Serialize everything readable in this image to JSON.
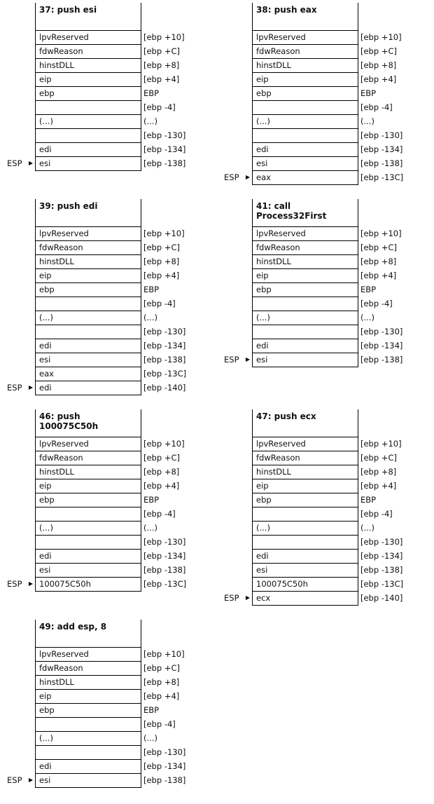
{
  "esp_label": "ESP",
  "frames": [
    {
      "title": "37: push esi",
      "rows": [
        {
          "cell": "lpvReserved",
          "addr": "[ebp +10]"
        },
        {
          "cell": "fdwReason",
          "addr": "[ebp +C]"
        },
        {
          "cell": "hinstDLL",
          "addr": "[ebp +8]"
        },
        {
          "cell": "eip",
          "addr": "[ebp +4]"
        },
        {
          "cell": "ebp",
          "addr": "EBP"
        },
        {
          "cell": "",
          "addr": "[ebp -4]"
        },
        {
          "cell": "(...)",
          "addr": "(...)"
        },
        {
          "cell": "",
          "addr": "[ebp -130]"
        },
        {
          "cell": "edi",
          "addr": "[ebp -134]"
        },
        {
          "cell": "esi",
          "addr": "[ebp -138]"
        }
      ]
    },
    {
      "title": "38: push eax",
      "rows": [
        {
          "cell": "lpvReserved",
          "addr": "[ebp +10]"
        },
        {
          "cell": "fdwReason",
          "addr": "[ebp +C]"
        },
        {
          "cell": "hinstDLL",
          "addr": "[ebp +8]"
        },
        {
          "cell": "eip",
          "addr": "[ebp +4]"
        },
        {
          "cell": "ebp",
          "addr": "EBP"
        },
        {
          "cell": "",
          "addr": "[ebp -4]"
        },
        {
          "cell": "(...)",
          "addr": "(...)"
        },
        {
          "cell": "",
          "addr": "[ebp -130]"
        },
        {
          "cell": "edi",
          "addr": "[ebp -134]"
        },
        {
          "cell": "esi",
          "addr": "[ebp -138]"
        },
        {
          "cell": "eax",
          "addr": "[ebp -13C]"
        }
      ]
    },
    {
      "title": "39: push edi",
      "rows": [
        {
          "cell": "lpvReserved",
          "addr": "[ebp +10]"
        },
        {
          "cell": "fdwReason",
          "addr": "[ebp +C]"
        },
        {
          "cell": "hinstDLL",
          "addr": "[ebp +8]"
        },
        {
          "cell": "eip",
          "addr": "[ebp +4]"
        },
        {
          "cell": "ebp",
          "addr": "EBP"
        },
        {
          "cell": "",
          "addr": "[ebp -4]"
        },
        {
          "cell": "(...)",
          "addr": "(...)"
        },
        {
          "cell": "",
          "addr": "[ebp -130]"
        },
        {
          "cell": "edi",
          "addr": "[ebp -134]"
        },
        {
          "cell": "esi",
          "addr": "[ebp -138]"
        },
        {
          "cell": "eax",
          "addr": "[ebp -13C]"
        },
        {
          "cell": "edi",
          "addr": "[ebp -140]"
        }
      ]
    },
    {
      "title": "41: call Process32First",
      "rows": [
        {
          "cell": "lpvReserved",
          "addr": "[ebp +10]"
        },
        {
          "cell": "fdwReason",
          "addr": "[ebp +C]"
        },
        {
          "cell": "hinstDLL",
          "addr": "[ebp +8]"
        },
        {
          "cell": "eip",
          "addr": "[ebp +4]"
        },
        {
          "cell": "ebp",
          "addr": "EBP"
        },
        {
          "cell": "",
          "addr": "[ebp -4]"
        },
        {
          "cell": "(...)",
          "addr": "(...)"
        },
        {
          "cell": "",
          "addr": "[ebp -130]"
        },
        {
          "cell": "edi",
          "addr": "[ebp -134]"
        },
        {
          "cell": "esi",
          "addr": "[ebp -138]"
        }
      ]
    },
    {
      "title": "46: push 100075C50h",
      "rows": [
        {
          "cell": "lpvReserved",
          "addr": "[ebp +10]"
        },
        {
          "cell": "fdwReason",
          "addr": "[ebp +C]"
        },
        {
          "cell": "hinstDLL",
          "addr": "[ebp +8]"
        },
        {
          "cell": "eip",
          "addr": "[ebp +4]"
        },
        {
          "cell": "ebp",
          "addr": "EBP"
        },
        {
          "cell": "",
          "addr": "[ebp -4]"
        },
        {
          "cell": "(...)",
          "addr": "(...)"
        },
        {
          "cell": "",
          "addr": "[ebp -130]"
        },
        {
          "cell": "edi",
          "addr": "[ebp -134]"
        },
        {
          "cell": "esi",
          "addr": "[ebp -138]"
        },
        {
          "cell": "100075C50h",
          "addr": "[ebp -13C]"
        }
      ]
    },
    {
      "title": "47: push ecx",
      "rows": [
        {
          "cell": "lpvReserved",
          "addr": "[ebp +10]"
        },
        {
          "cell": "fdwReason",
          "addr": "[ebp +C]"
        },
        {
          "cell": "hinstDLL",
          "addr": "[ebp +8]"
        },
        {
          "cell": "eip",
          "addr": "[ebp +4]"
        },
        {
          "cell": "ebp",
          "addr": "EBP"
        },
        {
          "cell": "",
          "addr": "[ebp -4]"
        },
        {
          "cell": "(...)",
          "addr": "(...)"
        },
        {
          "cell": "",
          "addr": "[ebp -130]"
        },
        {
          "cell": "edi",
          "addr": "[ebp -134]"
        },
        {
          "cell": "esi",
          "addr": "[ebp -138]"
        },
        {
          "cell": "100075C50h",
          "addr": "[ebp -13C]"
        },
        {
          "cell": "ecx",
          "addr": "[ebp -140]"
        }
      ]
    },
    {
      "title": "49: add esp, 8",
      "rows": [
        {
          "cell": "lpvReserved",
          "addr": "[ebp +10]"
        },
        {
          "cell": "fdwReason",
          "addr": "[ebp +C]"
        },
        {
          "cell": "hinstDLL",
          "addr": "[ebp +8]"
        },
        {
          "cell": "eip",
          "addr": "[ebp +4]"
        },
        {
          "cell": "ebp",
          "addr": "EBP"
        },
        {
          "cell": "",
          "addr": "[ebp -4]"
        },
        {
          "cell": "(...)",
          "addr": "(...)"
        },
        {
          "cell": "",
          "addr": "[ebp -130]"
        },
        {
          "cell": "edi",
          "addr": "[ebp -134]"
        },
        {
          "cell": "esi",
          "addr": "[ebp -138]"
        }
      ]
    }
  ]
}
